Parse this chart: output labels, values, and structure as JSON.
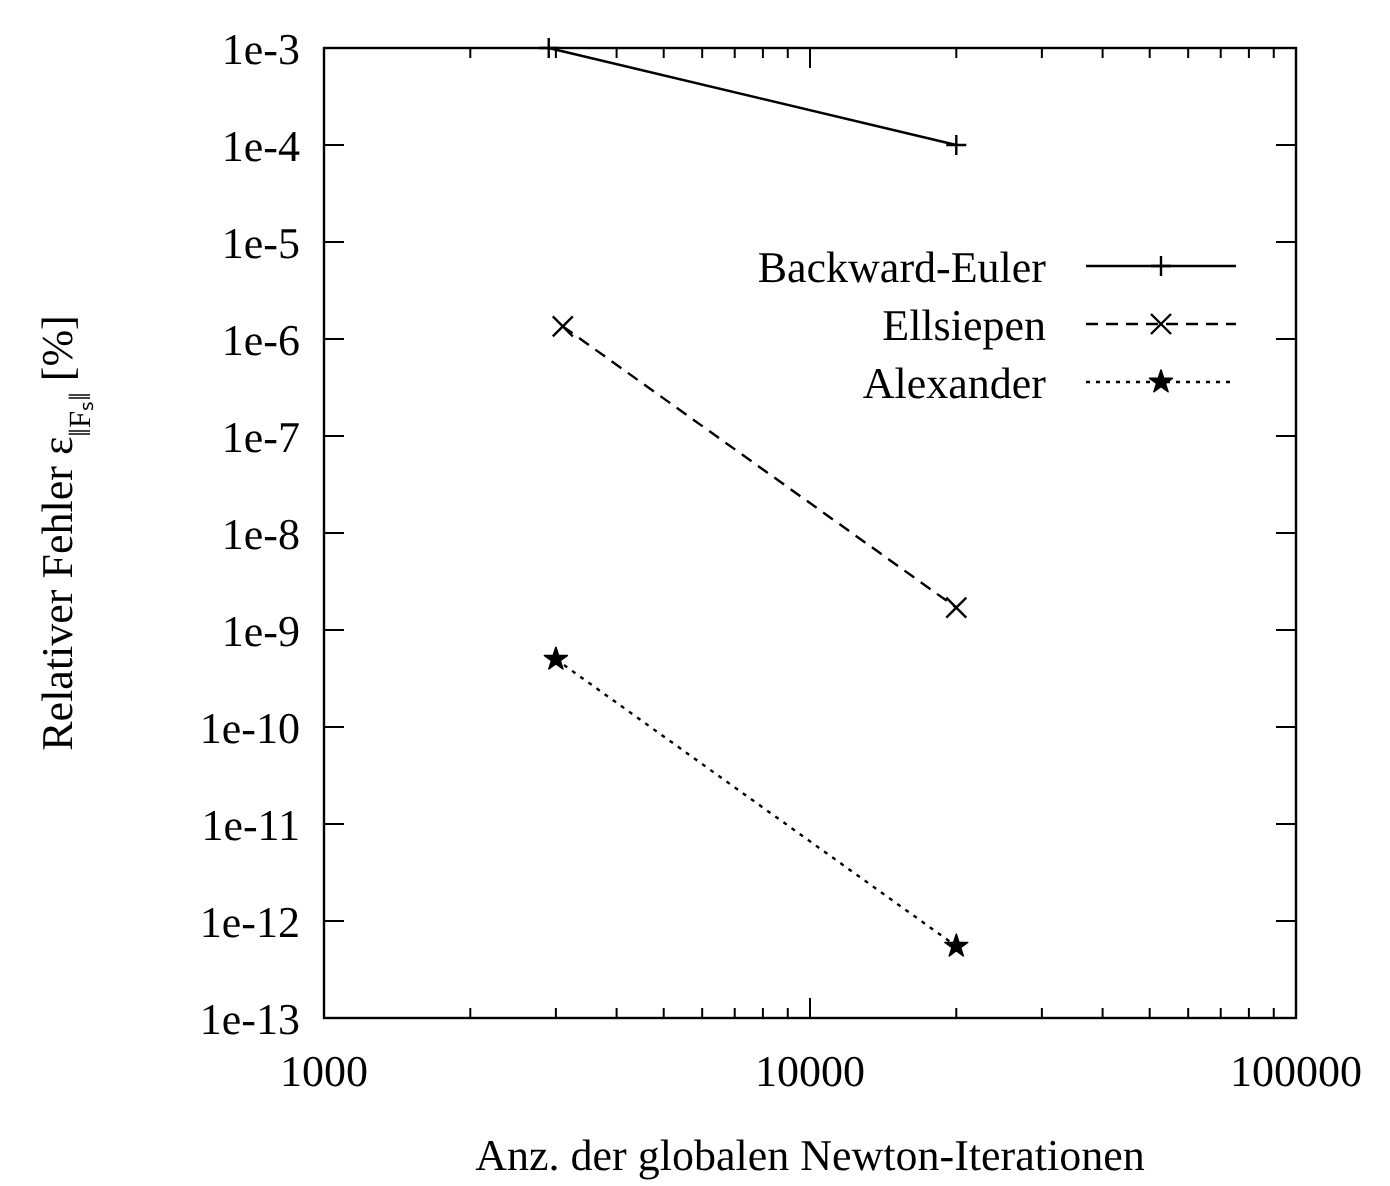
{
  "chart_data": {
    "type": "line",
    "xlabel": "Anz. der globalen Newton-Iterationen",
    "ylabel": "Relativer Fehler ε$_{‖Fₛ‖}$ [%]",
    "log": "xy",
    "legend": "top right",
    "grid": false,
    "xlim": [
      1000,
      100000
    ],
    "xticks": [
      1000,
      {
        "value": 2000,
        "label": null
      },
      {
        "value": 3000,
        "label": null
      },
      {
        "value": 4000,
        "label": null
      },
      {
        "value": 5000,
        "label": null
      },
      {
        "value": 6000,
        "label": null
      },
      {
        "value": 7000,
        "label": null
      },
      {
        "value": 8000,
        "label": null
      },
      {
        "value": 9000,
        "label": null
      },
      10000,
      {
        "value": 20000,
        "label": null
      },
      {
        "value": 30000,
        "label": null
      },
      {
        "value": 40000,
        "label": null
      },
      {
        "value": 50000,
        "label": null
      },
      {
        "value": 60000,
        "label": null
      },
      {
        "value": 70000,
        "label": null
      },
      {
        "value": 80000,
        "label": null
      },
      {
        "value": 90000,
        "label": null
      },
      100000
    ],
    "ylim": [
      1e-13,
      0.001
    ],
    "yticks": [
      {
        "value": 0.001,
        "label": "1e-3"
      },
      {
        "value": 0.0001,
        "label": "1e-4"
      },
      {
        "value": 1e-05,
        "label": "1e-5"
      },
      {
        "value": 1e-06,
        "label": "1e-6"
      },
      {
        "value": 1e-07,
        "label": "1e-7"
      },
      {
        "value": 1e-08,
        "label": "1e-8"
      },
      {
        "value": 1e-09,
        "label": "1e-9"
      },
      {
        "value": 1e-10,
        "label": "1e-10"
      },
      {
        "value": 1e-11,
        "label": "1e-11"
      },
      {
        "value": 1e-12,
        "label": "1e-12"
      },
      {
        "value": 1e-13,
        "label": "1e-13"
      }
    ],
    "series": [
      {
        "name": "Backward-Euler",
        "color": "#000000",
        "x": [
          2900,
          20000
        ],
        "values": [
          0.001,
          0.0001
        ],
        "marker": "plus",
        "line_style": "solid"
      },
      {
        "name": "Ellsiepen",
        "color": "#000000",
        "x": [
          3100,
          20000
        ],
        "values": [
          1.35e-06,
          1.7e-09
        ],
        "marker": "cross",
        "line_style": "dashed"
      },
      {
        "name": "Alexander",
        "color": "#000000",
        "x": [
          3000,
          20000
        ],
        "values": [
          5e-10,
          5.5e-13
        ],
        "marker": "star",
        "line_style": "dotted"
      }
    ]
  }
}
